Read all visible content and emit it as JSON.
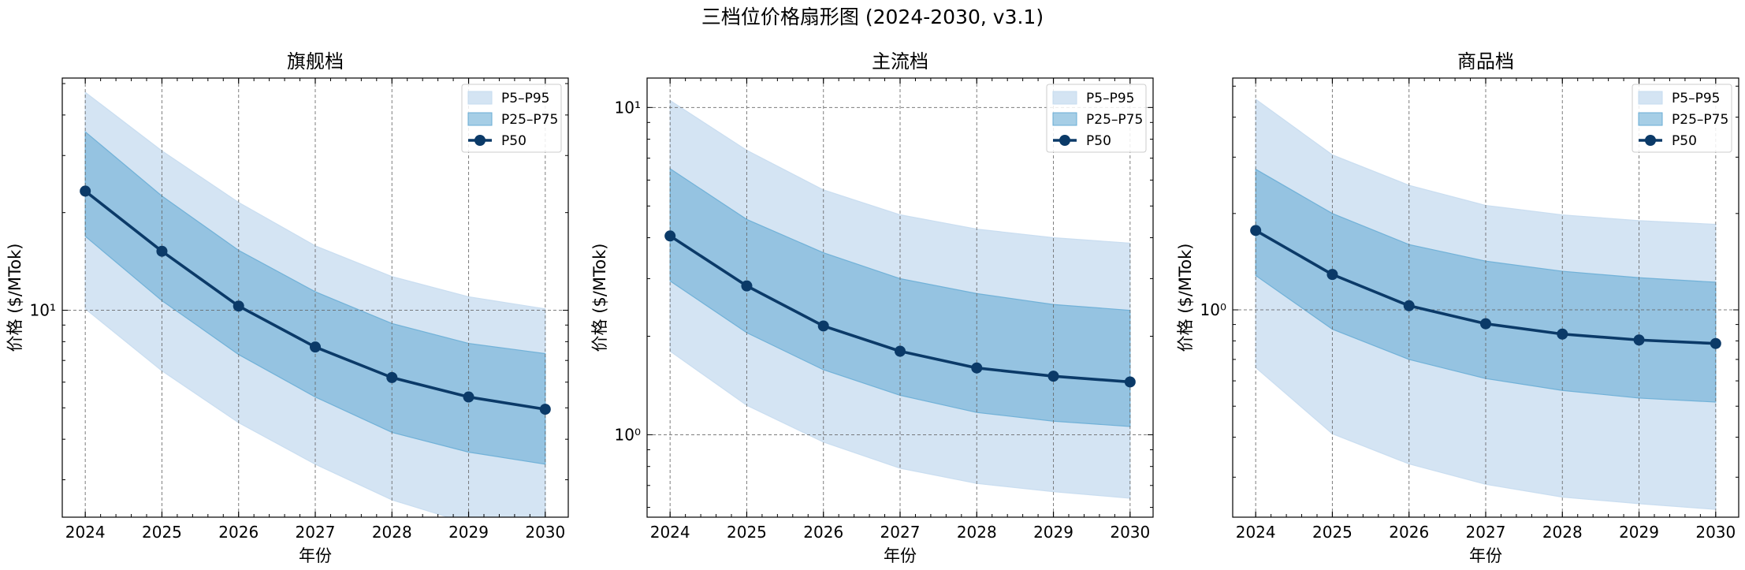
{
  "title": "三档位价格扇形图 (2024-2030, v3.1)",
  "colors": {
    "band_outer": "#c6dbef",
    "band_inner": "#6aaed6",
    "median": "#0b3a68",
    "grid": "#666666",
    "frame": "#000000"
  },
  "chart_data": [
    {
      "type": "area",
      "title": "旗舰档",
      "xlabel": "年份",
      "ylabel": "价格 ($/MTok)",
      "y_scale": "log",
      "xlim": [
        2023.7,
        2030.3
      ],
      "ylim": [
        2.3,
        52
      ],
      "x": [
        2024,
        2025,
        2026,
        2027,
        2028,
        2029,
        2030
      ],
      "y_tick_labels": [
        {
          "value": 10,
          "label": "10¹"
        }
      ],
      "legend": {
        "placement": "upper right",
        "entries": [
          "P5–P95",
          "P25–P75",
          "P50"
        ]
      },
      "grid": true,
      "series": [
        {
          "name": "P5–P95",
          "lower": [
            10.1,
            6.5,
            4.5,
            3.35,
            2.6,
            2.2,
            2.05
          ],
          "upper": [
            47,
            31,
            21.5,
            15.8,
            12.7,
            11.0,
            10.1
          ]
        },
        {
          "name": "P25–P75",
          "lower": [
            16.9,
            10.7,
            7.3,
            5.4,
            4.2,
            3.65,
            3.35
          ],
          "upper": [
            35.5,
            22.5,
            15.3,
            11.4,
            9.1,
            7.9,
            7.35
          ]
        },
        {
          "name": "P50",
          "values": [
            23.3,
            15.2,
            10.3,
            7.7,
            6.2,
            5.4,
            4.95
          ]
        }
      ]
    },
    {
      "type": "area",
      "title": "主流档",
      "xlabel": "年份",
      "ylabel": "价格 ($/MTok)",
      "y_scale": "log",
      "xlim": [
        2023.7,
        2030.3
      ],
      "ylim": [
        0.56,
        12.3
      ],
      "x": [
        2024,
        2025,
        2026,
        2027,
        2028,
        2029,
        2030
      ],
      "y_tick_labels": [
        {
          "value": 1,
          "label": "10⁰"
        },
        {
          "value": 10,
          "label": "10¹"
        }
      ],
      "legend": {
        "placement": "upper right",
        "entries": [
          "P5–P95",
          "P25–P75",
          "P50"
        ]
      },
      "grid": true,
      "series": [
        {
          "name": "P5–P95",
          "lower": [
            1.8,
            1.23,
            0.95,
            0.79,
            0.71,
            0.67,
            0.64
          ],
          "upper": [
            10.5,
            7.4,
            5.6,
            4.7,
            4.25,
            4.0,
            3.85
          ]
        },
        {
          "name": "P25–P75",
          "lower": [
            2.95,
            2.05,
            1.58,
            1.32,
            1.17,
            1.1,
            1.06
          ],
          "upper": [
            6.5,
            4.55,
            3.6,
            3.0,
            2.7,
            2.5,
            2.4
          ]
        },
        {
          "name": "P50",
          "values": [
            4.05,
            2.85,
            2.15,
            1.8,
            1.6,
            1.51,
            1.45
          ]
        }
      ]
    },
    {
      "type": "area",
      "title": "商品档",
      "xlabel": "年份",
      "ylabel": "价格 ($/MTok)",
      "y_scale": "log",
      "xlim": [
        2023.7,
        2030.3
      ],
      "ylim": [
        0.225,
        5.3
      ],
      "x": [
        2024,
        2025,
        2026,
        2027,
        2028,
        2029,
        2030
      ],
      "y_tick_labels": [
        {
          "value": 1,
          "label": "10⁰"
        }
      ],
      "legend": {
        "placement": "upper right",
        "entries": [
          "P5–P95",
          "P25–P75",
          "P50"
        ]
      },
      "grid": true,
      "series": [
        {
          "name": "P5–P95",
          "lower": [
            0.66,
            0.41,
            0.33,
            0.285,
            0.26,
            0.248,
            0.238
          ],
          "upper": [
            4.55,
            3.05,
            2.45,
            2.12,
            1.98,
            1.9,
            1.85
          ]
        },
        {
          "name": "P25–P75",
          "lower": [
            1.28,
            0.87,
            0.7,
            0.61,
            0.56,
            0.53,
            0.515
          ],
          "upper": [
            2.75,
            2.0,
            1.6,
            1.42,
            1.32,
            1.26,
            1.22
          ]
        },
        {
          "name": "P50",
          "values": [
            1.77,
            1.29,
            1.03,
            0.905,
            0.84,
            0.805,
            0.785
          ]
        }
      ]
    }
  ]
}
